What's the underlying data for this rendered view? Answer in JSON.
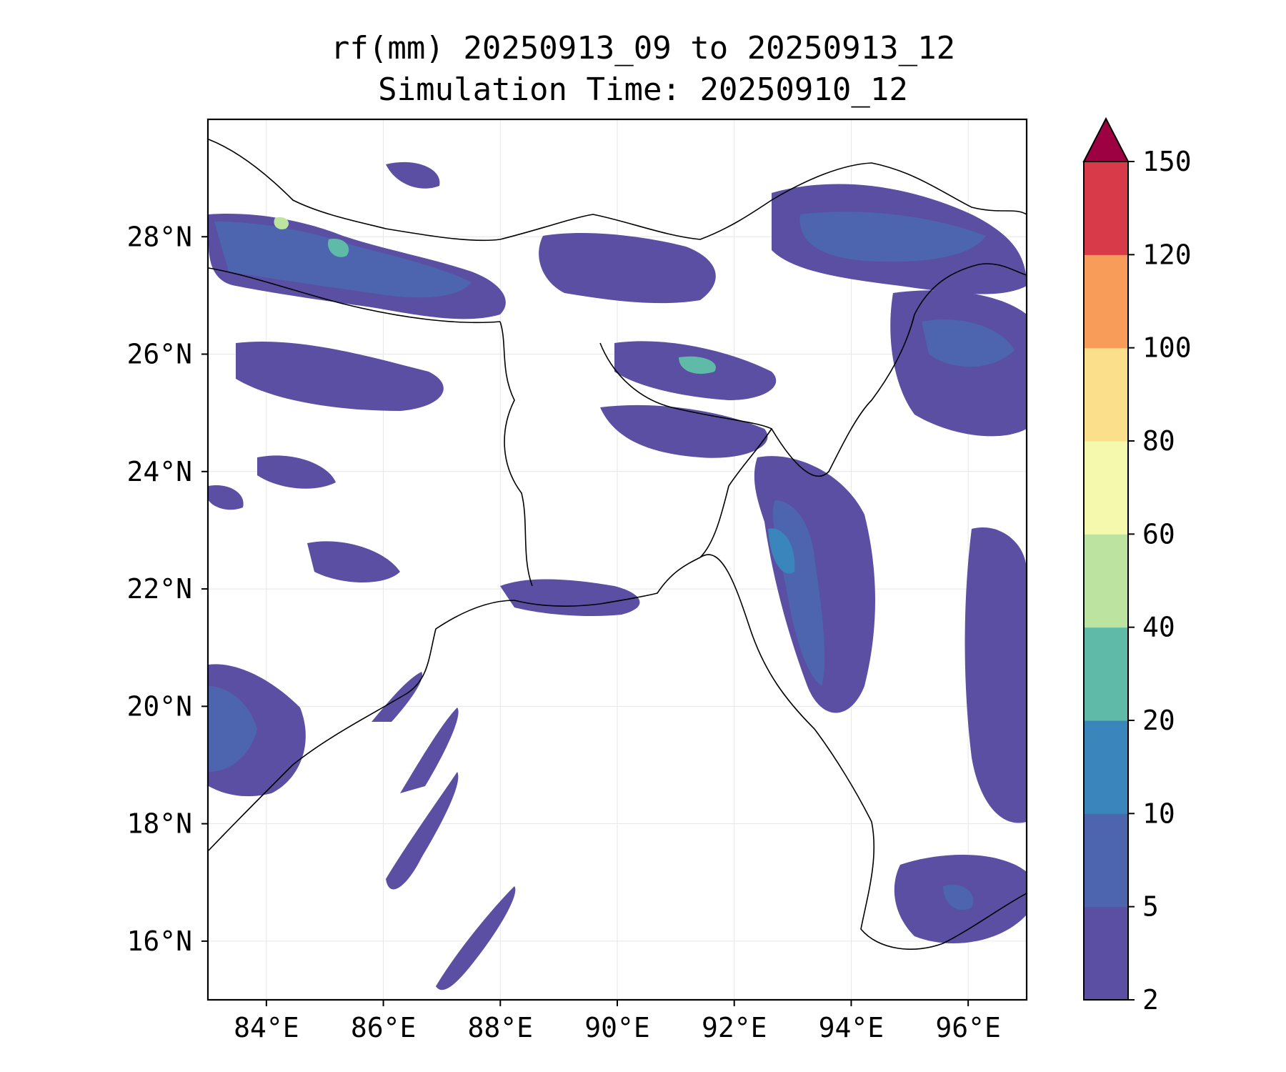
{
  "title": {
    "line1": "rf(mm) 20250913_09 to 20250913_12",
    "line2": "Simulation Time: 20250910_12"
  },
  "map": {
    "lon_range": [
      83,
      97
    ],
    "lat_range": [
      15,
      30
    ],
    "x_ticks": [
      "84°E",
      "86°E",
      "88°E",
      "90°E",
      "92°E",
      "94°E",
      "96°E"
    ],
    "y_ticks": [
      "16°N",
      "18°N",
      "20°N",
      "22°N",
      "24°N",
      "26°N",
      "28°N"
    ],
    "gridlines": true
  },
  "colorbar": {
    "levels": [
      "2",
      "5",
      "10",
      "20",
      "40",
      "60",
      "80",
      "100",
      "120",
      "150"
    ],
    "colors": [
      "#5a4fa2",
      "#4d65ae",
      "#3a86bc",
      "#5fbba8",
      "#bde3a0",
      "#f4f9ae",
      "#fbdf8a",
      "#f89c59",
      "#d93a4a"
    ],
    "extend_color": "#9e0142",
    "extend": "max"
  }
}
